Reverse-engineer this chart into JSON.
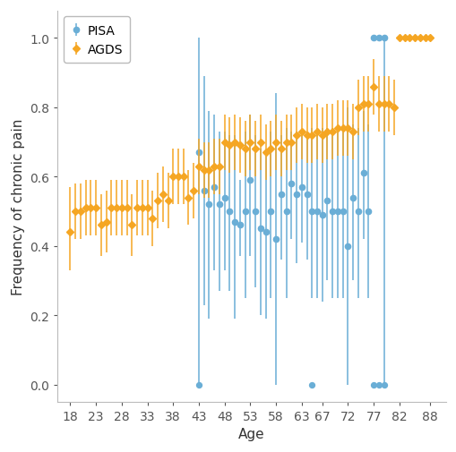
{
  "xlabel": "Age",
  "ylabel": "Frequency of chronic pain",
  "xlim": [
    15.5,
    91
  ],
  "ylim": [
    -0.05,
    1.08
  ],
  "pisa_color": "#6aaed6",
  "agds_color": "#f5a623",
  "pisa_ages": [
    43,
    44,
    45,
    46,
    47,
    48,
    49,
    50,
    51,
    52,
    53,
    54,
    55,
    56,
    57,
    58,
    59,
    60,
    61,
    62,
    63,
    64,
    65,
    66,
    67,
    68,
    69,
    70,
    71,
    72,
    73,
    74,
    75,
    76,
    77,
    78,
    79
  ],
  "pisa_vals": [
    0.67,
    0.56,
    0.52,
    0.57,
    0.52,
    0.54,
    0.5,
    0.47,
    0.46,
    0.5,
    0.59,
    0.5,
    0.45,
    0.44,
    0.5,
    0.42,
    0.55,
    0.5,
    0.58,
    0.55,
    0.57,
    0.55,
    0.5,
    0.5,
    0.49,
    0.53,
    0.5,
    0.5,
    0.5,
    0.4,
    0.54,
    0.5,
    0.61,
    0.5,
    1.0,
    1.0,
    1.0
  ],
  "pisa_lo": [
    0.0,
    0.23,
    0.19,
    0.33,
    0.27,
    0.33,
    0.27,
    0.19,
    0.37,
    0.25,
    0.37,
    0.28,
    0.2,
    0.19,
    0.25,
    0.0,
    0.36,
    0.25,
    0.42,
    0.35,
    0.41,
    0.36,
    0.25,
    0.25,
    0.24,
    0.3,
    0.25,
    0.25,
    0.25,
    0.0,
    0.3,
    0.25,
    0.42,
    0.25,
    1.0,
    1.0,
    0.0
  ],
  "pisa_hi": [
    1.0,
    0.89,
    0.79,
    0.78,
    0.73,
    0.73,
    0.72,
    0.72,
    0.59,
    0.73,
    0.78,
    0.72,
    0.68,
    0.67,
    0.73,
    0.84,
    0.72,
    0.74,
    0.73,
    0.73,
    0.73,
    0.73,
    0.74,
    0.74,
    0.74,
    0.74,
    0.74,
    0.74,
    0.74,
    0.8,
    0.75,
    0.74,
    0.79,
    0.75,
    1.0,
    1.0,
    1.0
  ],
  "pisa_solo_ages": [
    43,
    65,
    77,
    78,
    79
  ],
  "pisa_solo_vals": [
    0.0,
    0.0,
    0.0,
    0.0,
    0.0
  ],
  "agds_ages": [
    18,
    19,
    20,
    21,
    22,
    23,
    24,
    25,
    26,
    27,
    28,
    29,
    30,
    31,
    32,
    33,
    34,
    35,
    36,
    37,
    38,
    39,
    40,
    41,
    42,
    43,
    44,
    45,
    46,
    47,
    48,
    49,
    50,
    51,
    52,
    53,
    54,
    55,
    56,
    57,
    58,
    59,
    60,
    61,
    62,
    63,
    64,
    65,
    66,
    67,
    68,
    69,
    70,
    71,
    72,
    73,
    74,
    75,
    76,
    77,
    78,
    79,
    80,
    81,
    82,
    83,
    84,
    85,
    86,
    87,
    88
  ],
  "agds_vals": [
    0.44,
    0.5,
    0.5,
    0.51,
    0.51,
    0.51,
    0.46,
    0.47,
    0.51,
    0.51,
    0.51,
    0.51,
    0.46,
    0.51,
    0.51,
    0.51,
    0.48,
    0.53,
    0.55,
    0.53,
    0.6,
    0.6,
    0.6,
    0.54,
    0.56,
    0.63,
    0.62,
    0.62,
    0.63,
    0.63,
    0.7,
    0.69,
    0.7,
    0.69,
    0.68,
    0.7,
    0.68,
    0.7,
    0.67,
    0.68,
    0.7,
    0.68,
    0.7,
    0.7,
    0.72,
    0.73,
    0.72,
    0.72,
    0.73,
    0.72,
    0.73,
    0.73,
    0.74,
    0.74,
    0.74,
    0.73,
    0.8,
    0.81,
    0.81,
    0.86,
    0.81,
    0.81,
    0.81,
    0.8,
    1.0,
    1.0,
    1.0,
    1.0,
    1.0,
    1.0,
    1.0
  ],
  "agds_lo": [
    0.33,
    0.42,
    0.42,
    0.43,
    0.43,
    0.43,
    0.37,
    0.38,
    0.43,
    0.43,
    0.43,
    0.43,
    0.37,
    0.43,
    0.43,
    0.43,
    0.4,
    0.45,
    0.47,
    0.45,
    0.52,
    0.52,
    0.52,
    0.46,
    0.48,
    0.55,
    0.54,
    0.54,
    0.55,
    0.55,
    0.62,
    0.61,
    0.62,
    0.61,
    0.6,
    0.62,
    0.6,
    0.62,
    0.59,
    0.6,
    0.62,
    0.6,
    0.62,
    0.62,
    0.64,
    0.65,
    0.64,
    0.64,
    0.65,
    0.64,
    0.65,
    0.65,
    0.66,
    0.66,
    0.66,
    0.65,
    0.72,
    0.73,
    0.73,
    0.78,
    0.73,
    0.73,
    0.73,
    0.72,
    1.0,
    1.0,
    1.0,
    1.0,
    1.0,
    1.0,
    1.0
  ],
  "agds_hi": [
    0.57,
    0.58,
    0.58,
    0.59,
    0.59,
    0.59,
    0.55,
    0.56,
    0.59,
    0.59,
    0.59,
    0.59,
    0.55,
    0.59,
    0.59,
    0.59,
    0.56,
    0.61,
    0.63,
    0.61,
    0.68,
    0.68,
    0.68,
    0.62,
    0.64,
    0.71,
    0.7,
    0.7,
    0.71,
    0.71,
    0.78,
    0.77,
    0.78,
    0.77,
    0.76,
    0.78,
    0.76,
    0.78,
    0.75,
    0.76,
    0.78,
    0.76,
    0.78,
    0.78,
    0.8,
    0.81,
    0.8,
    0.8,
    0.81,
    0.8,
    0.81,
    0.81,
    0.82,
    0.82,
    0.82,
    0.81,
    0.88,
    0.89,
    0.89,
    0.94,
    0.89,
    0.89,
    0.89,
    0.88,
    1.0,
    1.0,
    1.0,
    1.0,
    1.0,
    1.0,
    1.0
  ],
  "xticks": [
    18,
    23,
    28,
    33,
    38,
    43,
    48,
    53,
    58,
    63,
    67,
    72,
    77,
    82,
    88
  ],
  "yticks": [
    0.0,
    0.2,
    0.4,
    0.6,
    0.8,
    1.0
  ],
  "bg_color": "#ffffff",
  "spine_color": "#bbbbbb",
  "tick_color": "#555555"
}
